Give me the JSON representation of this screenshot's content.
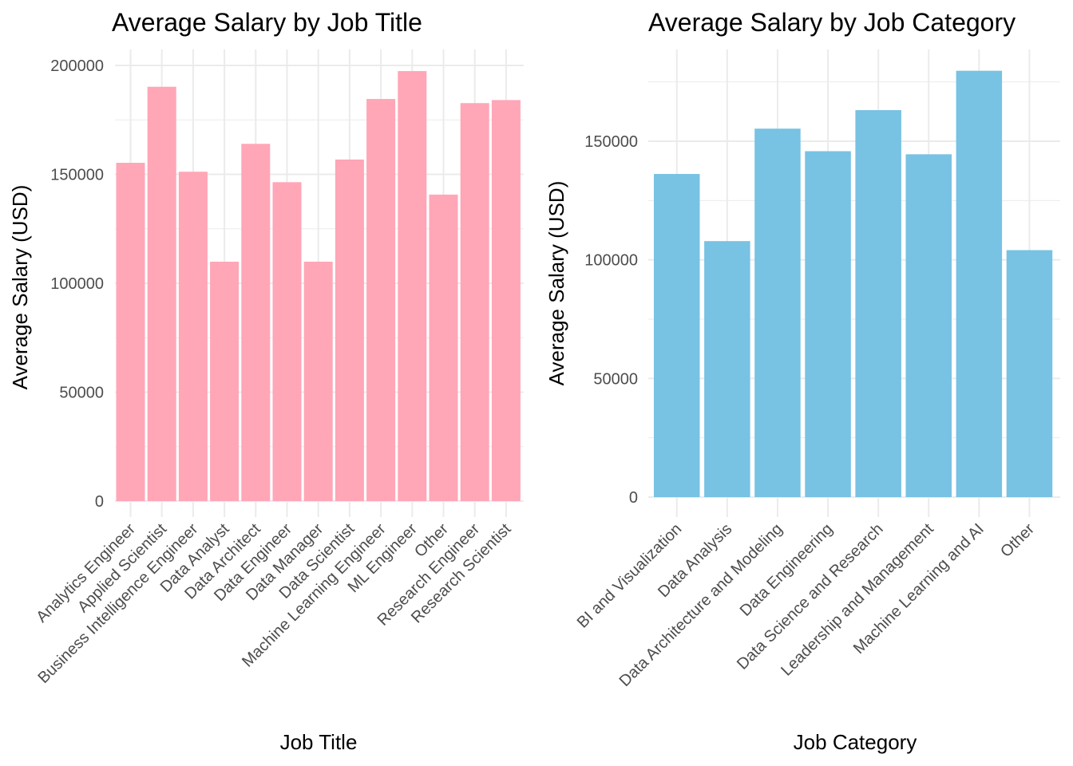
{
  "chart_data": [
    {
      "type": "bar",
      "title": "Average Salary by Job Title",
      "xlabel": "Job Title",
      "ylabel": "Average Salary (USD)",
      "ylim": [
        0,
        200000
      ],
      "yticks": [
        0,
        50000,
        100000,
        150000,
        200000
      ],
      "y_tick_labels": [
        "0",
        "50000",
        "100000",
        "150000",
        "200000"
      ],
      "grid": true,
      "bar_color": "#FFA6B7",
      "categories": [
        "Analytics Engineer",
        "Applied Scientist",
        "Business Intelligence Engineer",
        "Data Analyst",
        "Data Architect",
        "Data Engineer",
        "Data Manager",
        "Data Scientist",
        "Machine Learning Engineer",
        "ML Engineer",
        "Other",
        "Research Engineer",
        "Research Scientist"
      ],
      "values": [
        155300,
        190200,
        151200,
        109900,
        164000,
        146400,
        109900,
        156800,
        184600,
        197400,
        140700,
        182700,
        184100
      ]
    },
    {
      "type": "bar",
      "title": "Average Salary by Job Category",
      "xlabel": "Job Category",
      "ylabel": "Average Salary (USD)",
      "ylim": [
        0,
        180000
      ],
      "yticks": [
        0,
        50000,
        100000,
        150000
      ],
      "y_tick_labels": [
        "0",
        "50000",
        "100000",
        "150000"
      ],
      "grid": true,
      "bar_color": "#78C2E3",
      "categories": [
        "BI and Visualization",
        "Data Analysis",
        "Data Architecture and Modeling",
        "Data Engineering",
        "Data Science and Research",
        "Leadership and Management",
        "Machine Learning and AI",
        "Other"
      ],
      "values": [
        136200,
        107900,
        155300,
        145800,
        163100,
        144500,
        179700,
        104100
      ]
    }
  ]
}
